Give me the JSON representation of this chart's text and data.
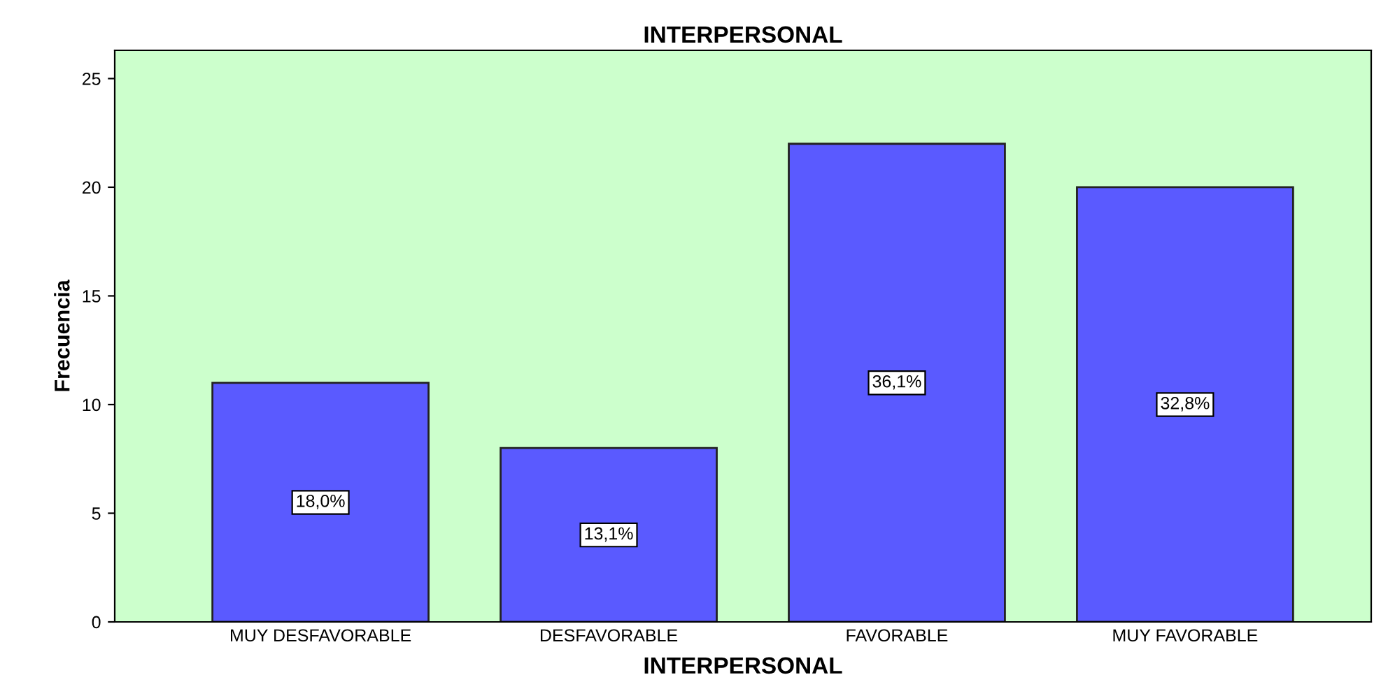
{
  "chart_data": {
    "type": "bar",
    "title": "INTERPERSONAL",
    "xlabel": "INTERPERSONAL",
    "ylabel": "Frecuencia",
    "categories": [
      "MUY DESFAVORABLE",
      "DESFAVORABLE",
      "FAVORABLE",
      "MUY FAVORABLE"
    ],
    "values": [
      11,
      8,
      22,
      20
    ],
    "color": "#5a5aff",
    "annotations": [
      {
        "text": "18,0%",
        "x": "MUY DESFAVORABLE",
        "y": 5.5
      },
      {
        "text": "13,1%",
        "x": "DESFAVORABLE",
        "y": 4
      },
      {
        "text": "36,1%",
        "x": "FAVORABLE",
        "y": 11
      },
      {
        "text": "32,8%",
        "x": "MUY FAVORABLE",
        "y": 10
      }
    ],
    "ylim": [
      0,
      26.3
    ],
    "yticks": [
      0,
      5,
      10,
      15,
      20,
      25
    ],
    "grid": false,
    "legend": false
  }
}
